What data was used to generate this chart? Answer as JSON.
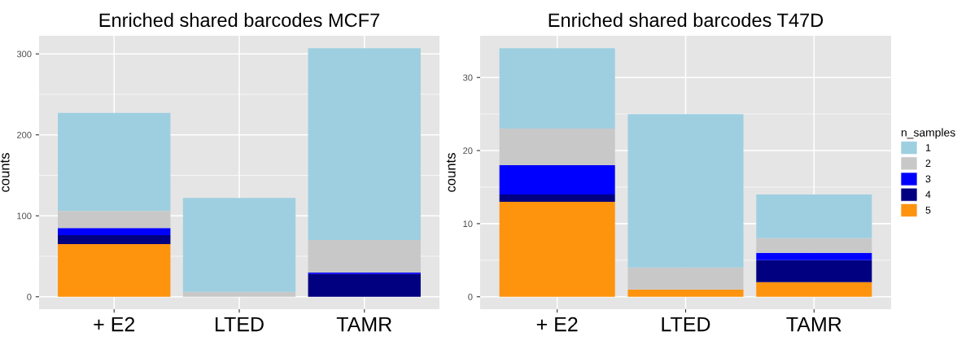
{
  "chart_data": [
    {
      "type": "bar",
      "title": "Enriched shared barcodes MCF7",
      "ylabel": "counts",
      "categories": [
        "+ E2",
        "LTED",
        "TAMR"
      ],
      "stacked": true,
      "grid": true,
      "legend": "right",
      "ylim": [
        -15.35,
        322.35
      ],
      "yticks": [
        0,
        100,
        200,
        300
      ],
      "series": [
        {
          "name": "5",
          "color": "#fe930e",
          "values": [
            65,
            0,
            0
          ]
        },
        {
          "name": "4",
          "color": "#000080",
          "values": [
            11,
            0,
            28
          ]
        },
        {
          "name": "3",
          "color": "#0000ff",
          "values": [
            9,
            0,
            2
          ]
        },
        {
          "name": "2",
          "color": "#c8c8c8",
          "values": [
            21,
            6,
            40
          ]
        },
        {
          "name": "1",
          "color": "#9ecfe0",
          "values": [
            121,
            116,
            237
          ]
        }
      ]
    },
    {
      "type": "bar",
      "title": "Enriched shared barcodes T47D",
      "ylabel": "counts",
      "legend_title": "n_samples",
      "categories": [
        "+ E2",
        "LTED",
        "TAMR"
      ],
      "stacked": true,
      "grid": true,
      "legend": "right",
      "ylim": [
        -1.7,
        35.7
      ],
      "yticks": [
        0,
        10,
        20,
        30
      ],
      "series": [
        {
          "name": "5",
          "color": "#fe930e",
          "values": [
            13,
            1,
            2
          ]
        },
        {
          "name": "4",
          "color": "#000080",
          "values": [
            1,
            0,
            3
          ]
        },
        {
          "name": "3",
          "color": "#0000ff",
          "values": [
            4,
            0,
            1
          ]
        },
        {
          "name": "2",
          "color": "#c8c8c8",
          "values": [
            5,
            3,
            2
          ]
        },
        {
          "name": "1",
          "color": "#9ecfe0",
          "values": [
            11,
            21,
            6
          ]
        }
      ]
    }
  ]
}
